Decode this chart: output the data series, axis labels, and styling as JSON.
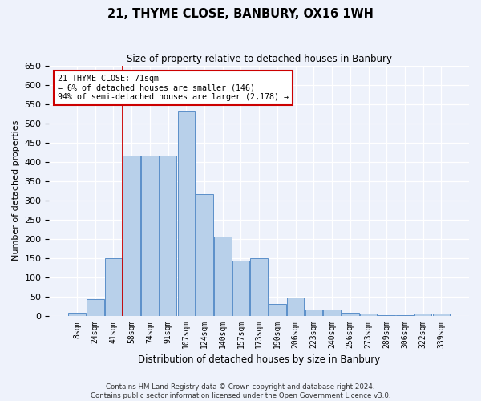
{
  "title": "21, THYME CLOSE, BANBURY, OX16 1WH",
  "subtitle": "Size of property relative to detached houses in Banbury",
  "xlabel": "Distribution of detached houses by size in Banbury",
  "ylabel": "Number of detached properties",
  "categories": [
    "8sqm",
    "24sqm",
    "41sqm",
    "58sqm",
    "74sqm",
    "91sqm",
    "107sqm",
    "124sqm",
    "140sqm",
    "157sqm",
    "173sqm",
    "190sqm",
    "206sqm",
    "223sqm",
    "240sqm",
    "256sqm",
    "273sqm",
    "289sqm",
    "306sqm",
    "322sqm",
    "339sqm"
  ],
  "values": [
    8,
    42,
    150,
    415,
    415,
    415,
    530,
    315,
    205,
    142,
    150,
    30,
    48,
    15,
    15,
    8,
    5,
    2,
    2,
    5,
    5
  ],
  "bar_color": "#b8d0ea",
  "bar_edge_color": "#5b8fc9",
  "property_label": "21 THYME CLOSE: 71sqm",
  "annotation_line1": "← 6% of detached houses are smaller (146)",
  "annotation_line2": "94% of semi-detached houses are larger (2,178) →",
  "vline_color": "#cc0000",
  "vline_x": 2.5,
  "ylim": [
    0,
    650
  ],
  "yticks": [
    0,
    50,
    100,
    150,
    200,
    250,
    300,
    350,
    400,
    450,
    500,
    550,
    600,
    650
  ],
  "footer_line1": "Contains HM Land Registry data © Crown copyright and database right 2024.",
  "footer_line2": "Contains public sector information licensed under the Open Government Licence v3.0.",
  "background_color": "#eef2fb",
  "grid_color": "#ffffff"
}
